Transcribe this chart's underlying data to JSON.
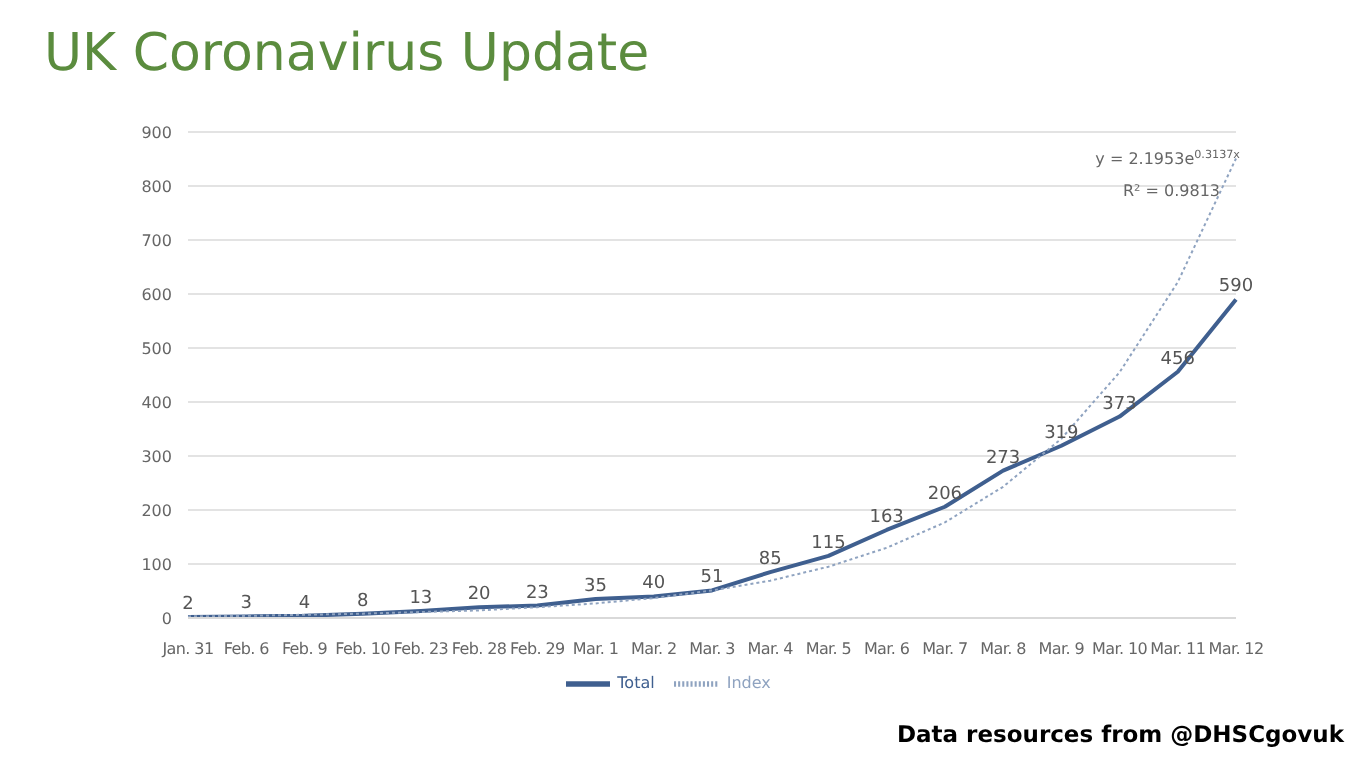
{
  "chart_data": {
    "type": "line",
    "title": "UK Coronavirus Update",
    "categories": [
      "Jan. 31",
      "Feb. 6",
      "Feb. 9",
      "Feb. 10",
      "Feb. 23",
      "Feb. 28",
      "Feb. 29",
      "Mar. 1",
      "Mar. 2",
      "Mar. 3",
      "Mar. 4",
      "Mar. 5",
      "Mar. 6",
      "Mar. 7",
      "Mar. 8",
      "Mar. 9",
      "Mar. 10",
      "Mar. 11",
      "Mar. 12"
    ],
    "series": [
      {
        "name": "Total",
        "color": "#3f5f8f",
        "line_style": "solid",
        "values": [
          2,
          3,
          4,
          8,
          13,
          20,
          23,
          35,
          40,
          51,
          85,
          115,
          163,
          206,
          273,
          319,
          373,
          456,
          590
        ],
        "value_labels": [
          "2",
          "3",
          "4",
          "8",
          "13",
          "20",
          "23",
          "35",
          "40",
          "51",
          "85",
          "115",
          "163",
          "206",
          "273",
          "319",
          "373",
          "456",
          "590"
        ]
      },
      {
        "name": "Index",
        "color": "#8fa3c0",
        "line_style": "dotted",
        "values": [
          3,
          4,
          6,
          8,
          11,
          14,
          20,
          27,
          37,
          51,
          69,
          95,
          130,
          177,
          243,
          332,
          455,
          622,
          851
        ]
      }
    ],
    "ylim": [
      0,
      900
    ],
    "yticks": [
      0,
      100,
      200,
      300,
      400,
      500,
      600,
      700,
      800,
      900
    ],
    "grid": "y",
    "legend": "bottom",
    "marker": "none",
    "annotations": [
      "y = 2.1953e$^{0.3137x}$",
      "R² = 0.9813",
      "Data resources from @DHSCgovuk"
    ]
  }
}
